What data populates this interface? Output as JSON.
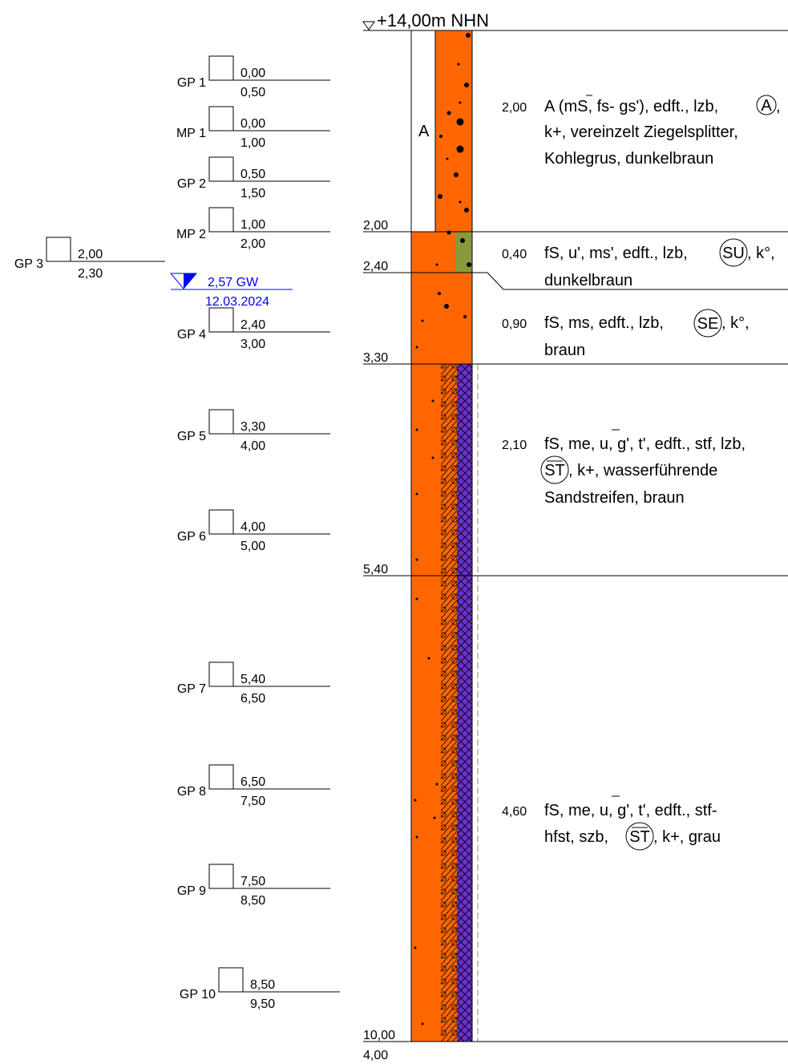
{
  "header": {
    "datum": "+14,00m NHN"
  },
  "colors": {
    "orange": "#ff6600",
    "olive": "#8a9a3a",
    "purple": "#6a2fd0",
    "groundwater_blue": "#0000ff",
    "line": "#000000"
  },
  "column_label": "A",
  "depth_marks": [
    "2,00",
    "2,40",
    "3,30",
    "5,40",
    "10,00"
  ],
  "base_label": "4,00",
  "groundwater": {
    "depth": "2,57 GW",
    "date": "12.03.2024"
  },
  "samples": [
    {
      "id": "GP 1",
      "top": "0,00",
      "bottom": "0,50"
    },
    {
      "id": "MP 1",
      "top": "0,00",
      "bottom": "1,00"
    },
    {
      "id": "GP 2",
      "top": "0,50",
      "bottom": "1,50"
    },
    {
      "id": "MP 2",
      "top": "1,00",
      "bottom": "2,00"
    },
    {
      "id": "GP 3",
      "top": "2,00",
      "bottom": "2,30"
    },
    {
      "id": "GP 4",
      "top": "2,40",
      "bottom": "3,00"
    },
    {
      "id": "GP 5",
      "top": "3,30",
      "bottom": "4,00"
    },
    {
      "id": "GP 6",
      "top": "4,00",
      "bottom": "5,00"
    },
    {
      "id": "GP 7",
      "top": "5,40",
      "bottom": "6,50"
    },
    {
      "id": "GP 8",
      "top": "6,50",
      "bottom": "7,50"
    },
    {
      "id": "GP 9",
      "top": "7,50",
      "bottom": "8,50"
    },
    {
      "id": "GP 10",
      "top": "8,50",
      "bottom": "9,50"
    }
  ],
  "layers": [
    {
      "thickness": "2,00",
      "lines": [
        "A (mS, fs- gs'), edft., lzb,",
        "k+, vereinzelt Ziegelsplitter,",
        "Kohlegrus, dunkelbraun"
      ],
      "circle": "A"
    },
    {
      "thickness": "0,40",
      "lines": [
        "fS, u', ms', edft., lzb,",
        "dunkelbraun"
      ],
      "circle": "SU",
      "after": ", k°,"
    },
    {
      "thickness": "0,90",
      "lines": [
        "fS, ms, edft., lzb,",
        "braun"
      ],
      "circle": "SE",
      "after": ", k°,"
    },
    {
      "thickness": "2,10",
      "lines": [
        "fS, me, u, g', t', edft., stf, lzb,",
        ", k+, wasserführende",
        "Sandstreifen, braun"
      ],
      "circle": "ST"
    },
    {
      "thickness": "4,60",
      "lines": [
        "fS, me, u, g', t', edft., stf-",
        "hfst, szb,",
        ", k+, grau"
      ],
      "circle": "ST"
    }
  ]
}
